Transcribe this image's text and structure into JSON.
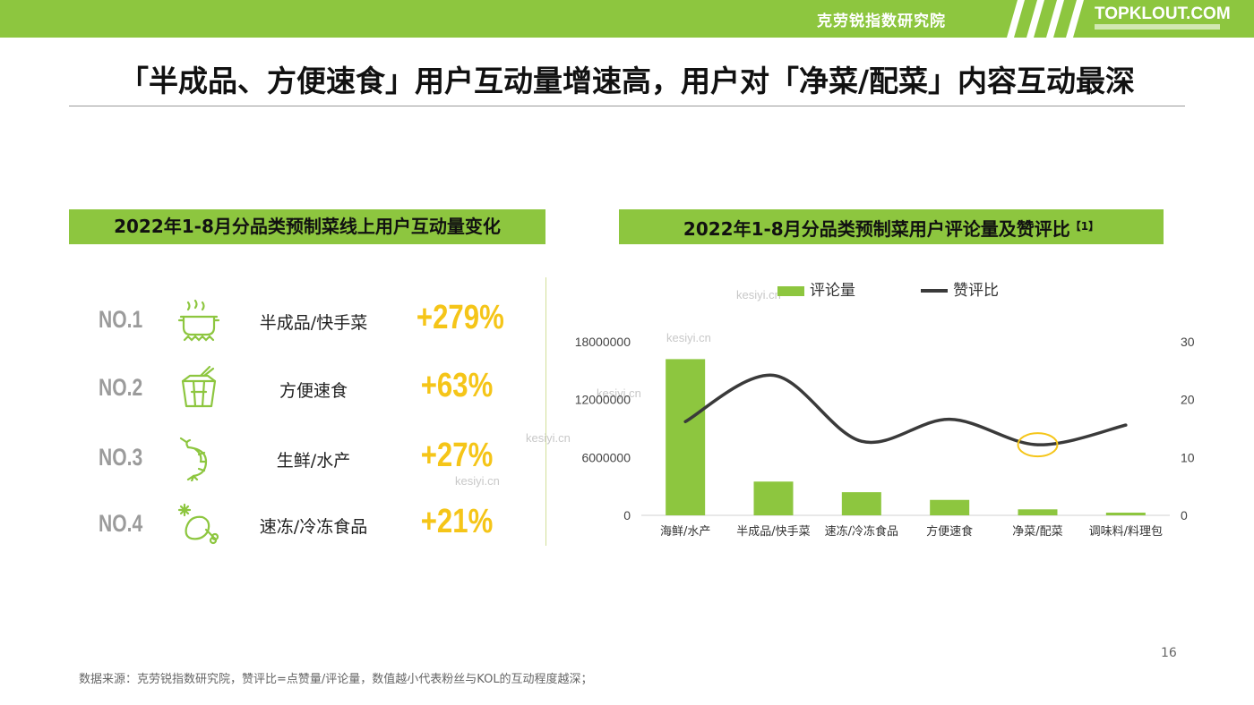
{
  "header": {
    "org_name": "克劳锐指数研究院",
    "brand": "TOPKLOUT.COM",
    "accent_color": "#8dc63f"
  },
  "title": "「半成品、方便速食」用户互动量增速高，用户对「净菜/配菜」内容互动最深",
  "left_panel": {
    "heading": "2022年1-8月分品类预制菜线上用户互动量变化",
    "ranks": [
      {
        "no": "NO.1",
        "icon": "cooking-pot-icon",
        "label": "半成品/快手菜",
        "growth": "+279%"
      },
      {
        "no": "NO.2",
        "icon": "takeout-box-icon",
        "label": "方便速食",
        "growth": "+63%"
      },
      {
        "no": "NO.3",
        "icon": "shrimp-icon",
        "label": "生鲜/水产",
        "growth": "+27%"
      },
      {
        "no": "NO.4",
        "icon": "frozen-drumstick-icon",
        "label": "速冻/冷冻食品",
        "growth": "+21%"
      }
    ]
  },
  "right_panel": {
    "heading": "2022年1-8月分品类预制菜用户评论量及赞评比",
    "heading_note": "【1】"
  },
  "chart_data": {
    "type": "bar",
    "categories": [
      "海鲜/水产",
      "半成品/快手菜",
      "速冻/冷冻食品",
      "方便速食",
      "净菜/配菜",
      "调味料/料理包"
    ],
    "series": [
      {
        "name": "评论量",
        "type": "bar",
        "axis": "left",
        "color": "#8dc63f",
        "values": [
          16200000,
          3500000,
          2400000,
          1600000,
          620000,
          280000
        ]
      },
      {
        "name": "赞评比",
        "type": "line",
        "axis": "right",
        "color": "#3a3a3a",
        "values": [
          16.2,
          24.2,
          12.8,
          16.6,
          12.2,
          15.6
        ]
      }
    ],
    "y_left": {
      "ticks": [
        0,
        6000000,
        12000000,
        18000000
      ],
      "lim": [
        0,
        18000000
      ]
    },
    "y_right": {
      "ticks": [
        0,
        10,
        20,
        30
      ],
      "lim": [
        0,
        30
      ]
    },
    "highlight_category": "净菜/配菜",
    "highlight_color": "#f5c518",
    "legend_position": "top"
  },
  "watermark": "kesiyi.cn",
  "footer": "数据来源：克劳锐指数研究院，赞评比=点赞量/评论量，数值越小代表粉丝与KOL的互动程度越深；",
  "page_number": "16"
}
